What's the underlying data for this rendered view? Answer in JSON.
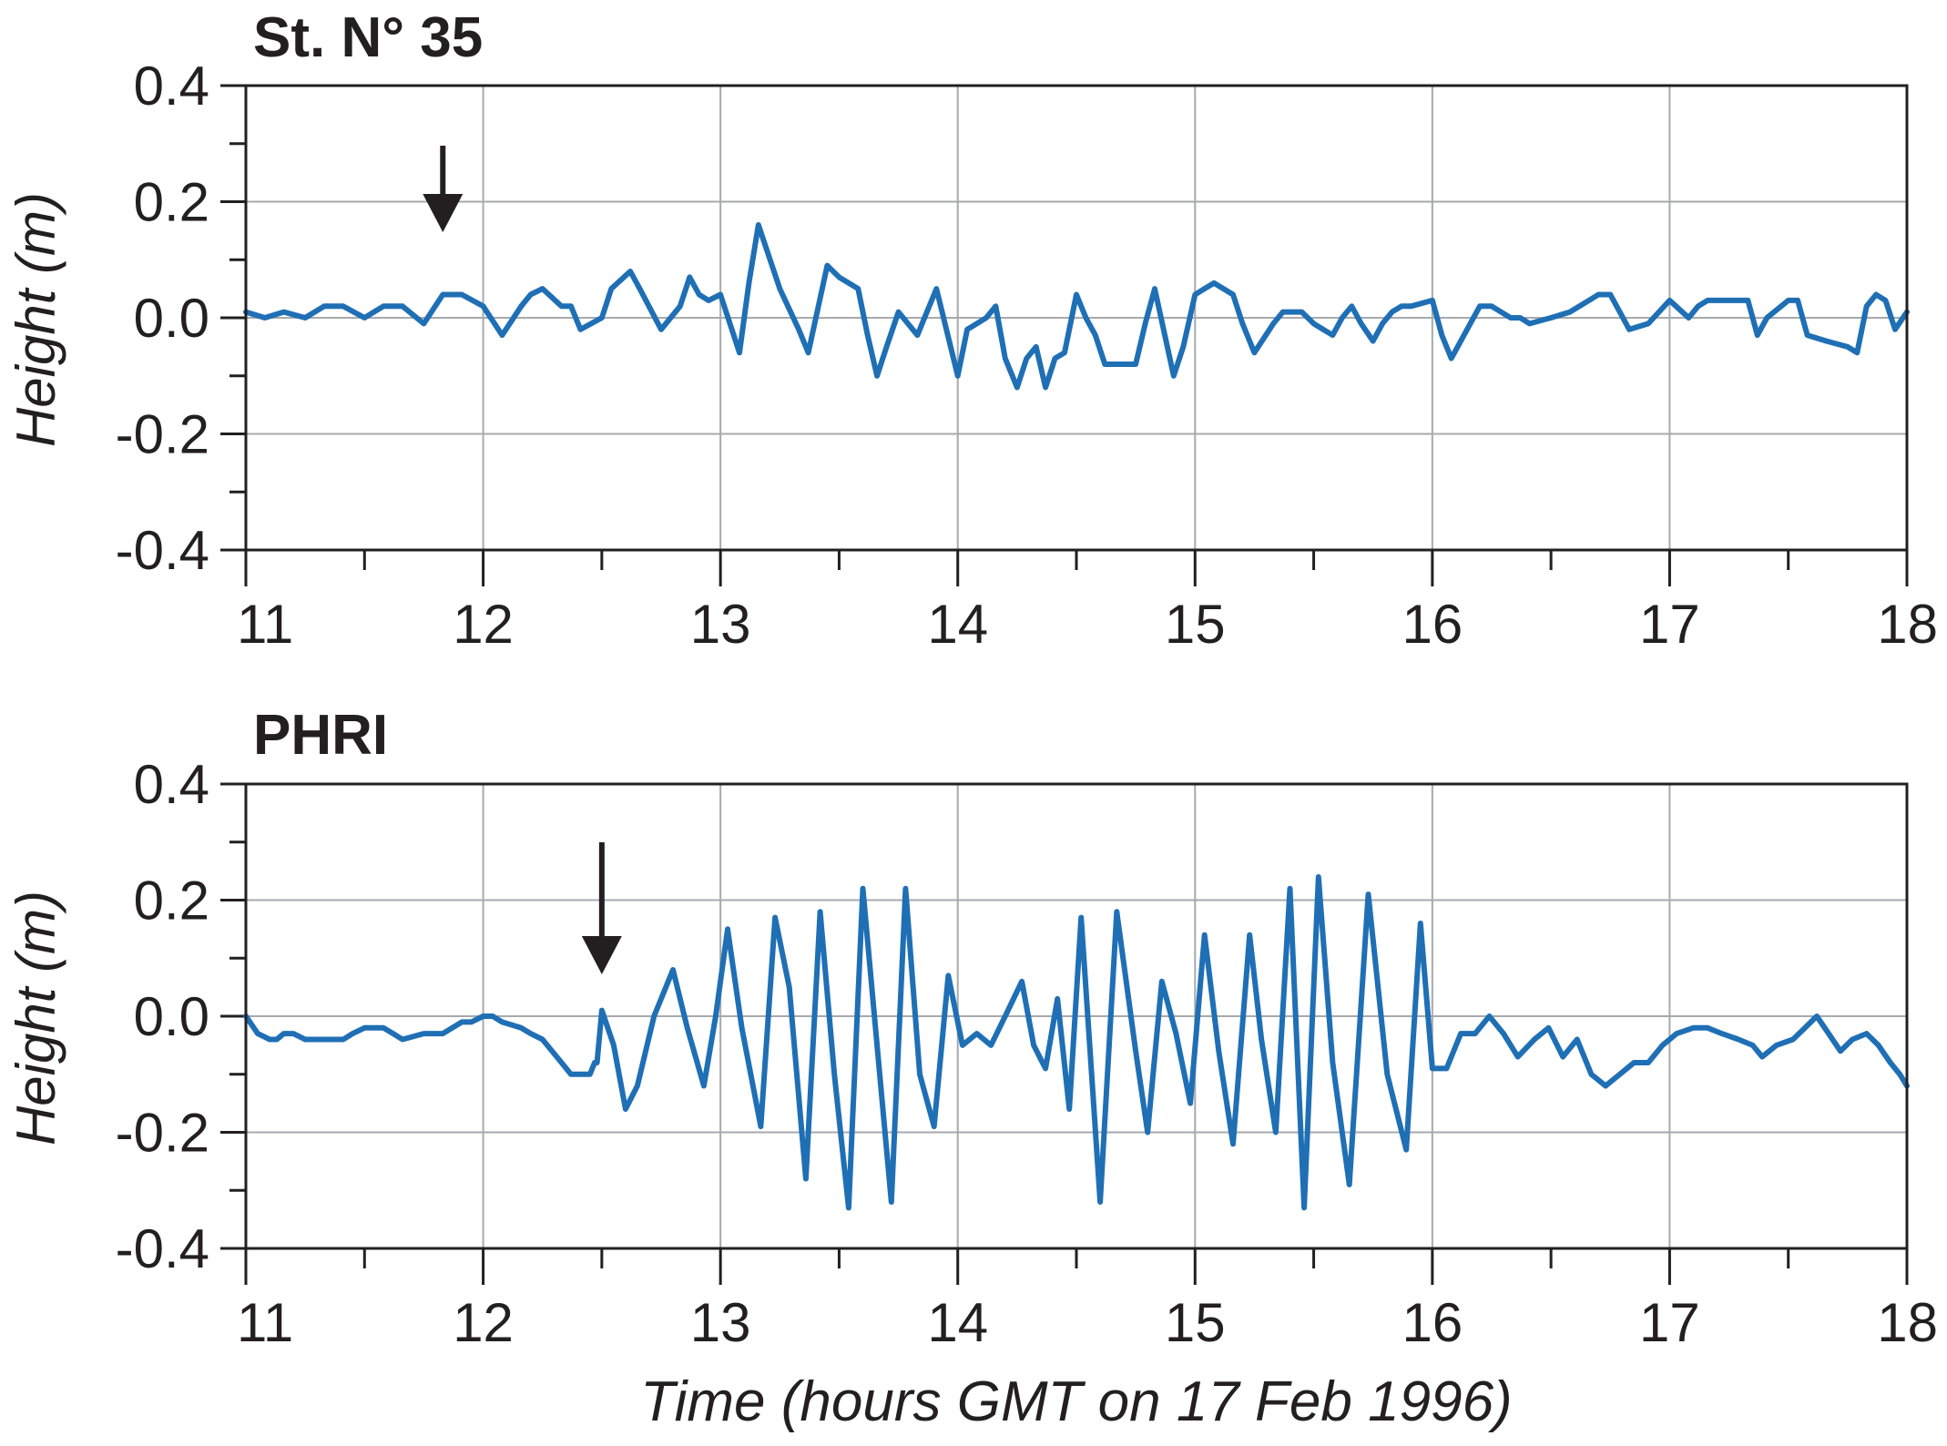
{
  "chart_data": [
    {
      "type": "line",
      "title": "St. N° 35",
      "xlabel": "",
      "ylabel": "Height (m)",
      "xlim": [
        11,
        18
      ],
      "ylim": [
        -0.4,
        0.4
      ],
      "x_ticks": [
        "11",
        "12",
        "13",
        "14",
        "15",
        "16",
        "17",
        "18"
      ],
      "y_ticks": [
        "0.4",
        "0.2",
        "0.0",
        "-0.2",
        "-0.4"
      ],
      "grid": true,
      "arrival_marker_x": 11.83,
      "series": [
        {
          "color": "#1f6fb5",
          "x": [
            11.0,
            11.08,
            11.16,
            11.25,
            11.33,
            11.41,
            11.5,
            11.54,
            11.58,
            11.66,
            11.75,
            11.83,
            11.91,
            12.0,
            12.08,
            12.16,
            12.2,
            12.25,
            12.33,
            12.37,
            12.41,
            12.5,
            12.54,
            12.62,
            12.66,
            12.75,
            12.83,
            12.87,
            12.91,
            12.95,
            13.0,
            13.08,
            13.12,
            13.16,
            13.25,
            13.33,
            13.37,
            13.45,
            13.5,
            13.58,
            13.62,
            13.66,
            13.7,
            13.75,
            13.83,
            13.91,
            14.0,
            14.04,
            14.08,
            14.12,
            14.16,
            14.2,
            14.25,
            14.29,
            14.33,
            14.37,
            14.41,
            14.45,
            14.5,
            14.54,
            14.58,
            14.62,
            14.66,
            14.7,
            14.75,
            14.79,
            14.83,
            14.91,
            14.95,
            15.0,
            15.04,
            15.08,
            15.16,
            15.2,
            15.25,
            15.33,
            15.37,
            15.41,
            15.45,
            15.5,
            15.54,
            15.58,
            15.62,
            15.66,
            15.7,
            15.75,
            15.79,
            15.83,
            15.87,
            15.91,
            16.0,
            16.04,
            16.08,
            16.16,
            16.2,
            16.25,
            16.33,
            16.37,
            16.41,
            16.5,
            16.58,
            16.66,
            16.7,
            16.75,
            16.83,
            16.91,
            17.0,
            17.08,
            17.12,
            17.16,
            17.25,
            17.33,
            17.37,
            17.41,
            17.5,
            17.54,
            17.58,
            17.66,
            17.75,
            17.79,
            17.83,
            17.87,
            17.91,
            17.95,
            18.0
          ],
          "y": [
            0.01,
            0.0,
            0.01,
            0.0,
            0.02,
            0.02,
            0.0,
            0.01,
            0.02,
            0.02,
            -0.01,
            0.04,
            0.04,
            0.02,
            -0.03,
            0.02,
            0.04,
            0.05,
            0.02,
            0.02,
            -0.02,
            0.0,
            0.05,
            0.08,
            0.05,
            -0.02,
            0.02,
            0.07,
            0.04,
            0.03,
            0.04,
            -0.06,
            0.06,
            0.16,
            0.05,
            -0.02,
            -0.06,
            0.09,
            0.07,
            0.05,
            -0.03,
            -0.1,
            -0.05,
            0.01,
            -0.03,
            0.05,
            -0.1,
            -0.02,
            -0.01,
            0.0,
            0.02,
            -0.07,
            -0.12,
            -0.07,
            -0.05,
            -0.12,
            -0.07,
            -0.06,
            0.04,
            0.0,
            -0.03,
            -0.08,
            -0.08,
            -0.08,
            -0.08,
            -0.01,
            0.05,
            -0.1,
            -0.05,
            0.04,
            0.05,
            0.06,
            0.04,
            -0.01,
            -0.06,
            -0.01,
            0.01,
            0.01,
            0.01,
            -0.01,
            -0.02,
            -0.03,
            0.0,
            0.02,
            -0.01,
            -0.04,
            -0.01,
            0.01,
            0.02,
            0.02,
            0.03,
            -0.03,
            -0.07,
            -0.01,
            0.02,
            0.02,
            0.0,
            0.0,
            -0.01,
            0.0,
            0.01,
            0.03,
            0.04,
            0.04,
            -0.02,
            -0.01,
            0.03,
            0.0,
            0.02,
            0.03,
            0.03,
            0.03,
            -0.03,
            0.0,
            0.03,
            0.03,
            -0.03,
            -0.04,
            -0.05,
            -0.06,
            0.02,
            0.04,
            0.03,
            -0.02,
            0.01
          ]
        }
      ]
    },
    {
      "type": "line",
      "title": "PHRI",
      "xlabel": "Time (hours GMT on 17 Feb 1996)",
      "ylabel": "Height (m)",
      "xlim": [
        11,
        18
      ],
      "ylim": [
        -0.4,
        0.4
      ],
      "x_ticks": [
        "11",
        "12",
        "13",
        "14",
        "15",
        "16",
        "17",
        "18"
      ],
      "y_ticks": [
        "0.4",
        "0.2",
        "0.0",
        "-0.2",
        "-0.4"
      ],
      "grid": true,
      "arrival_marker_x": 12.5,
      "series": [
        {
          "color": "#1f6fb5",
          "x": [
            11.0,
            11.05,
            11.1,
            11.13,
            11.16,
            11.2,
            11.25,
            11.33,
            11.41,
            11.45,
            11.5,
            11.58,
            11.62,
            11.66,
            11.75,
            11.79,
            11.83,
            11.91,
            11.95,
            12.0,
            12.04,
            12.08,
            12.16,
            12.2,
            12.25,
            12.33,
            12.37,
            12.41,
            12.45,
            12.47,
            12.48,
            12.5,
            12.55,
            12.6,
            12.65,
            12.72,
            12.8,
            12.86,
            12.93,
            12.98,
            13.03,
            13.09,
            13.17,
            13.23,
            13.29,
            13.36,
            13.42,
            13.48,
            13.54,
            13.6,
            13.66,
            13.72,
            13.78,
            13.84,
            13.9,
            13.96,
            14.02,
            14.08,
            14.14,
            14.2,
            14.27,
            14.32,
            14.37,
            14.42,
            14.47,
            14.52,
            14.6,
            14.67,
            14.75,
            14.8,
            14.86,
            14.92,
            14.98,
            15.04,
            15.1,
            15.16,
            15.23,
            15.28,
            15.34,
            15.4,
            15.46,
            15.52,
            15.58,
            15.65,
            15.73,
            15.81,
            15.89,
            15.95,
            16.0,
            16.06,
            16.12,
            16.18,
            16.24,
            16.3,
            16.36,
            16.43,
            16.49,
            16.55,
            16.61,
            16.67,
            16.73,
            16.79,
            16.85,
            16.91,
            16.97,
            17.03,
            17.1,
            17.16,
            17.22,
            17.29,
            17.35,
            17.39,
            17.45,
            17.52,
            17.57,
            17.62,
            17.67,
            17.72,
            17.77,
            17.83,
            17.88,
            17.93,
            17.97,
            18.0
          ],
          "y": [
            0.0,
            -0.03,
            -0.04,
            -0.04,
            -0.03,
            -0.03,
            -0.04,
            -0.04,
            -0.04,
            -0.03,
            -0.02,
            -0.02,
            -0.03,
            -0.04,
            -0.03,
            -0.03,
            -0.03,
            -0.01,
            -0.01,
            0.0,
            0.0,
            -0.01,
            -0.02,
            -0.03,
            -0.04,
            -0.08,
            -0.1,
            -0.1,
            -0.1,
            -0.08,
            -0.08,
            0.01,
            -0.05,
            -0.16,
            -0.12,
            0.0,
            0.08,
            -0.02,
            -0.12,
            0.0,
            0.15,
            -0.02,
            -0.19,
            0.17,
            0.05,
            -0.28,
            0.18,
            -0.1,
            -0.33,
            0.22,
            -0.05,
            -0.32,
            0.22,
            -0.1,
            -0.19,
            0.07,
            -0.05,
            -0.03,
            -0.05,
            0.0,
            0.06,
            -0.05,
            -0.09,
            0.03,
            -0.16,
            0.17,
            -0.32,
            0.18,
            -0.06,
            -0.2,
            0.06,
            -0.03,
            -0.15,
            0.14,
            -0.06,
            -0.22,
            0.14,
            -0.04,
            -0.2,
            0.22,
            -0.33,
            0.24,
            -0.08,
            -0.29,
            0.21,
            -0.1,
            -0.23,
            0.16,
            -0.09,
            -0.09,
            -0.03,
            -0.03,
            0.0,
            -0.03,
            -0.07,
            -0.04,
            -0.02,
            -0.07,
            -0.04,
            -0.1,
            -0.12,
            -0.1,
            -0.08,
            -0.08,
            -0.05,
            -0.03,
            -0.02,
            -0.02,
            -0.03,
            -0.04,
            -0.05,
            -0.07,
            -0.05,
            -0.04,
            -0.02,
            0.0,
            -0.03,
            -0.06,
            -0.04,
            -0.03,
            -0.05,
            -0.08,
            -0.1,
            -0.12
          ]
        }
      ]
    }
  ]
}
